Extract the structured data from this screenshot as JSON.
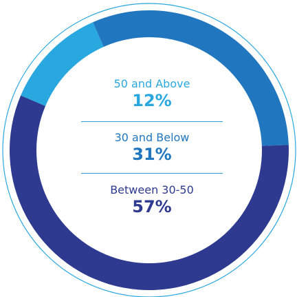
{
  "chart_data": {
    "type": "pie",
    "title": "",
    "categories": [
      "50 and Above",
      "30 and Below",
      "Between 30-50"
    ],
    "values": [
      12,
      31,
      57
    ],
    "value_labels": [
      "12%",
      "31%",
      "57%"
    ],
    "colors": [
      "#29a8e0",
      "#2177bf",
      "#2e3a8f"
    ],
    "text_colors": [
      "#29a8e0",
      "#2177bf",
      "#2e3a8f"
    ],
    "start_angle_deg": -67,
    "direction": "clockwise",
    "style": "donut"
  }
}
